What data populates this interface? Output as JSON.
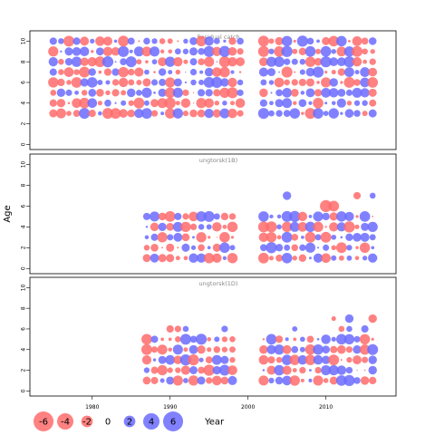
{
  "chart_data": {
    "type": "scatter",
    "subtype": "bubble-residuals",
    "ylabel": "Age",
    "xlim": [
      1972,
      2019
    ],
    "ylim": [
      -0.5,
      11
    ],
    "x_ticks": [
      1980,
      1990,
      2000,
      2010
    ],
    "y_ticks": [
      0,
      2,
      4,
      6,
      8,
      10
    ],
    "color_negative": "#ff6b6b",
    "color_positive": "#6b6bff",
    "legend": {
      "position": "bottom-left",
      "values": [
        "-6",
        "-4",
        "-2",
        "0",
        "2",
        "4",
        "6"
      ],
      "title": "Year"
    },
    "panels": [
      {
        "name": "catch",
        "title": "Residual catch",
        "x_from": 1975,
        "x_to": 2016,
        "ages": [
          3,
          4,
          5,
          6,
          7,
          8,
          9,
          10
        ],
        "gap": [
          2000,
          2001
        ],
        "seed": 11
      },
      {
        "name": "survey1",
        "title": "ungtorsk(1B)",
        "x_from": 1987,
        "x_to": 2016,
        "ages": [
          1,
          2,
          3,
          4,
          5
        ],
        "gap": [
          1999,
          2001
        ],
        "extra": [
          [
            2005,
            7,
            2.0
          ],
          [
            2010,
            6,
            -4.0
          ],
          [
            2011,
            6,
            -3.2
          ],
          [
            2014,
            7,
            -1.5
          ],
          [
            2016,
            7,
            1.0
          ]
        ],
        "seed": 23
      },
      {
        "name": "survey2",
        "title": "ungtorsk(1D)",
        "x_from": 1987,
        "x_to": 2016,
        "ages": [
          1,
          2,
          3,
          4,
          5
        ],
        "gap": [
          1999,
          2001
        ],
        "extra": [
          [
            1990,
            6,
            -1.5
          ],
          [
            1991,
            6,
            -1.2
          ],
          [
            1992,
            6,
            1.0
          ],
          [
            1997,
            6,
            1.2
          ],
          [
            2006,
            6,
            0.8
          ],
          [
            2012,
            6,
            -1.0
          ],
          [
            2013,
            6,
            1.0
          ],
          [
            2015,
            6,
            1.5
          ],
          [
            2016,
            7,
            -2.0
          ],
          [
            2011,
            7,
            -0.6
          ],
          [
            2013,
            7,
            2.0
          ]
        ],
        "seed": 37
      }
    ]
  }
}
